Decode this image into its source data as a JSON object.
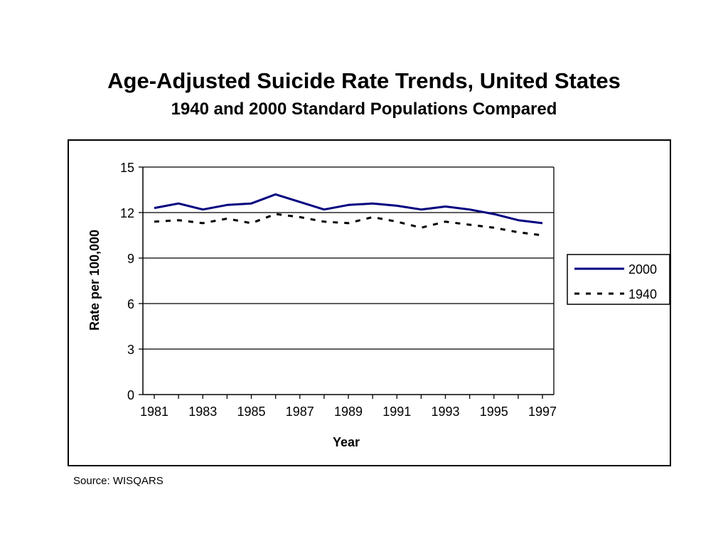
{
  "title": "Age-Adjusted Suicide Rate Trends, United States",
  "subtitle": "1940 and 2000 Standard Populations Compared",
  "source": "Source: WISQARS",
  "chart_data": {
    "type": "line",
    "xlabel": "Year",
    "ylabel": "Rate per 100,000",
    "x": [
      1981,
      1982,
      1983,
      1984,
      1985,
      1986,
      1987,
      1988,
      1989,
      1990,
      1991,
      1992,
      1993,
      1994,
      1995,
      1996,
      1997
    ],
    "x_ticks": [
      "1981",
      "1983",
      "1985",
      "1987",
      "1989",
      "1991",
      "1993",
      "1995",
      "1997"
    ],
    "y_ticks": [
      "0",
      "3",
      "6",
      "9",
      "12",
      "15"
    ],
    "ylim": [
      0,
      15
    ],
    "grid": "horizontal",
    "legend_position": "right",
    "series": [
      {
        "name": "2000",
        "color": "#000080",
        "style": "solid",
        "values": [
          12.3,
          12.6,
          12.2,
          12.5,
          12.6,
          13.2,
          12.7,
          12.2,
          12.5,
          12.6,
          12.45,
          12.2,
          12.4,
          12.2,
          11.9,
          11.5,
          11.3
        ]
      },
      {
        "name": "1940",
        "color": "#000000",
        "style": "dashed",
        "values": [
          11.4,
          11.5,
          11.3,
          11.6,
          11.3,
          11.9,
          11.7,
          11.4,
          11.3,
          11.7,
          11.4,
          11.0,
          11.4,
          11.2,
          11.0,
          10.7,
          10.5
        ]
      }
    ]
  }
}
